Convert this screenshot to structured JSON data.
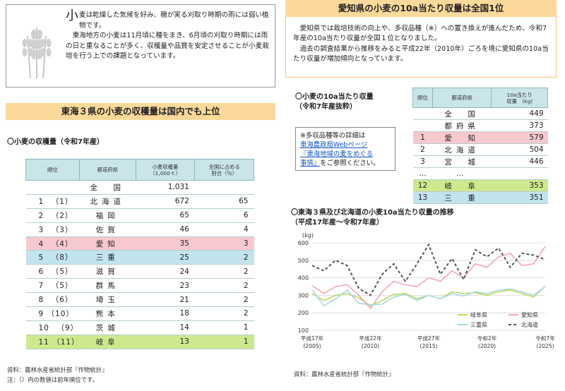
{
  "intro": {
    "big_char": "小",
    "line1_rest": "麦は乾燥した気候を好み、穂が実る刈取り時期の雨には弱い植物です。",
    "para2": "東海地方の小麦は11月頃に種をまき、6月頃の刈取り時期には雨の日と重なることが多く、収穫量や品質を安定させることが小麦栽培を行う上での課題となっています。"
  },
  "left_bar": "東海３県の小麦の収穫量は国内でも上位",
  "yield_title": "〇小麦の収穫量（令和7年産）",
  "yield_table": {
    "headers": [
      "順位",
      "都道府県",
      "小麦収穫量\n（1,000ｔ）",
      "全国に占める\n割合（％）"
    ],
    "rows": [
      {
        "rank": "",
        "pref": "全　国",
        "value": "1,031",
        "share": "",
        "hl": ""
      },
      {
        "rank": "1 　（1）",
        "pref": "北海道",
        "value": "672",
        "share": "65",
        "hl": ""
      },
      {
        "rank": "2 　（2）",
        "pref": "福岡",
        "value": "65",
        "share": "6",
        "hl": ""
      },
      {
        "rank": "3 　（3）",
        "pref": "佐賀",
        "value": "46",
        "share": "4",
        "hl": ""
      },
      {
        "rank": "4 　（4）",
        "pref": "愛知",
        "value": "35",
        "share": "3",
        "hl": "pink"
      },
      {
        "rank": "5 　（8）",
        "pref": "三重",
        "value": "25",
        "share": "2",
        "hl": "blue"
      },
      {
        "rank": "6 　（5）",
        "pref": "滋賀",
        "value": "24",
        "share": "2",
        "hl": ""
      },
      {
        "rank": "7 　（5）",
        "pref": "群馬",
        "value": "23",
        "share": "2",
        "hl": ""
      },
      {
        "rank": "8 　（6）",
        "pref": "埼玉",
        "value": "21",
        "share": "2",
        "hl": ""
      },
      {
        "rank": "9 （10）",
        "pref": "熊本",
        "value": "18",
        "share": "2",
        "hl": ""
      },
      {
        "rank": "10 　（9）",
        "pref": "茨城",
        "value": "14",
        "share": "1",
        "hl": ""
      },
      {
        "rank": "11 （11）",
        "pref": "岐阜",
        "value": "13",
        "share": "1",
        "hl": "green"
      }
    ]
  },
  "left_source": "資料：農林水産省統計部『作物統計』",
  "left_note": "注：（）内の数値は前年順位です。",
  "right_bar": "愛知県の小麦の10a当たり収量は全国1位",
  "right_body": {
    "p1": "愛知県では栽培技術の向上や、多収品種（※）への置き換えが進んだため、令和7年産の10a当たり収量が全国１位となりました。",
    "p2": "過去の調査結果から推移をみると平成22年（2010年）ごろを境に愛知県の10a当たり収量が増加傾向となっています。"
  },
  "per_title_1": "〇小麦の10a当たり収量",
  "per_title_2": "（令和7年産抜粋）",
  "per_table": {
    "headers": [
      "順位",
      "都道府県",
      "10a当たり\n収量　(kg)"
    ],
    "rows": [
      {
        "rank": "",
        "pref": "全　国",
        "value": "449",
        "hl": ""
      },
      {
        "rank": "",
        "pref": "都府県",
        "value": "373",
        "hl": ""
      },
      {
        "rank": "1",
        "pref": "愛　知",
        "value": "579",
        "hl": "pink"
      },
      {
        "rank": "2",
        "pref": "北海道",
        "value": "504",
        "hl": ""
      },
      {
        "rank": "3",
        "pref": "宮　城",
        "value": "446",
        "hl": ""
      },
      {
        "rank": "…",
        "pref": "…",
        "value": "",
        "hl": ""
      },
      {
        "rank": "12",
        "pref": "岐　阜",
        "value": "353",
        "hl": "green"
      },
      {
        "rank": "13",
        "pref": "三　重",
        "value": "351",
        "hl": "blue"
      }
    ]
  },
  "note_box": {
    "l1": "※多収品種等の詳細は",
    "link1": "東海農政局Webページ",
    "link2": "『東海地域の麦をめぐる",
    "link3": "事情』",
    "tail": "をご参照ください。"
  },
  "chart_title_1": "〇東海３県及び北海道の小麦10a当たり収量の推移",
  "chart_title_2": "（平成17年産～令和7年産）",
  "right_source": "資料：農林水産省統計部『作物統計』",
  "chart_data": {
    "type": "line",
    "ylabel": "(kg)",
    "ylim": [
      100,
      600
    ],
    "yticks": [
      100,
      200,
      300,
      400,
      500,
      600
    ],
    "x": [
      2005,
      2006,
      2007,
      2008,
      2009,
      2010,
      2011,
      2012,
      2013,
      2014,
      2015,
      2016,
      2017,
      2018,
      2019,
      2020,
      2021,
      2022,
      2023,
      2024,
      2025
    ],
    "xtick_labels": [
      {
        "x": 2005,
        "l1": "平成17年",
        "l2": "(2005)"
      },
      {
        "x": 2010,
        "l1": "平成22年",
        "l2": "(2010)"
      },
      {
        "x": 2015,
        "l1": "平成27年",
        "l2": "(2015)"
      },
      {
        "x": 2020,
        "l1": "令和2年",
        "l2": "(2020)"
      },
      {
        "x": 2025,
        "l1": "令和7年",
        "l2": "(2025)"
      }
    ],
    "series": [
      {
        "name": "岐阜県",
        "color": "#b9dc5a",
        "dash": "",
        "values": [
          310,
          270,
          300,
          310,
          285,
          240,
          270,
          305,
          310,
          280,
          300,
          280,
          320,
          310,
          315,
          300,
          320,
          330,
          310,
          290,
          353
        ]
      },
      {
        "name": "愛知県",
        "color": "#f4a4b6",
        "dash": "",
        "values": [
          355,
          310,
          350,
          360,
          300,
          225,
          320,
          380,
          360,
          350,
          400,
          380,
          440,
          400,
          480,
          460,
          520,
          540,
          470,
          480,
          579
        ]
      },
      {
        "name": "三重県",
        "color": "#aad6e6",
        "dash": "",
        "values": [
          330,
          240,
          280,
          330,
          255,
          245,
          250,
          290,
          305,
          270,
          300,
          280,
          310,
          295,
          320,
          310,
          330,
          335,
          320,
          300,
          351
        ]
      },
      {
        "name": "北海道",
        "color": "#555555",
        "dash": "4,3",
        "values": [
          470,
          440,
          500,
          470,
          340,
          300,
          420,
          480,
          380,
          480,
          590,
          420,
          510,
          390,
          560,
          520,
          570,
          460,
          540,
          530,
          504
        ]
      }
    ]
  }
}
